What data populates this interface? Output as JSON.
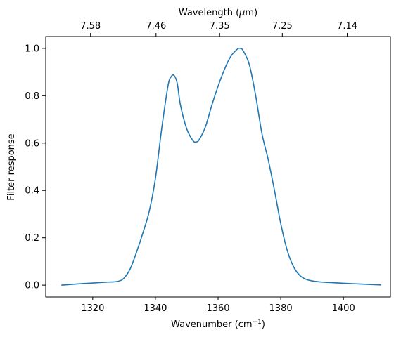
{
  "chart_data": {
    "type": "line",
    "xlabel": "Wavenumber (cm",
    "xlabel_sup": "−1",
    "xlabel_suffix": ")",
    "ylabel": "Filter response",
    "top_xlabel_prefix": "Wavelength (",
    "top_xlabel_unit": "μ",
    "top_xlabel_suffix": "m)",
    "xlim": [
      1305,
      1415
    ],
    "ylim": [
      -0.05,
      1.05
    ],
    "x_ticks": [
      1320,
      1340,
      1360,
      1380,
      1400
    ],
    "y_ticks": [
      0.0,
      0.2,
      0.4,
      0.6,
      0.8,
      1.0
    ],
    "top_ticks": [
      {
        "label": "7.58",
        "x": 1319.3
      },
      {
        "label": "7.46",
        "x": 1340.2
      },
      {
        "label": "7.35",
        "x": 1360.5
      },
      {
        "label": "7.25",
        "x": 1380.5
      },
      {
        "label": "7.14",
        "x": 1401.2
      }
    ],
    "grid": false,
    "series": [
      {
        "color": "#1f77b4",
        "x": [
          1310,
          1315,
          1320,
          1325,
          1328,
          1330,
          1332,
          1334,
          1336,
          1338,
          1340,
          1342,
          1344,
          1345,
          1346,
          1347,
          1348,
          1350,
          1352,
          1353,
          1354,
          1356,
          1358,
          1360,
          1362,
          1364,
          1366,
          1367,
          1368,
          1370,
          1372,
          1374,
          1376,
          1378,
          1380,
          1382,
          1384,
          1386,
          1388,
          1390,
          1393,
          1396,
          1400,
          1405,
          1412
        ],
        "y": [
          0.0,
          0.005,
          0.009,
          0.013,
          0.016,
          0.03,
          0.07,
          0.14,
          0.22,
          0.31,
          0.45,
          0.66,
          0.84,
          0.88,
          0.885,
          0.85,
          0.76,
          0.66,
          0.61,
          0.605,
          0.615,
          0.67,
          0.76,
          0.84,
          0.91,
          0.965,
          0.995,
          1.0,
          0.99,
          0.93,
          0.8,
          0.64,
          0.53,
          0.4,
          0.26,
          0.15,
          0.08,
          0.042,
          0.025,
          0.018,
          0.013,
          0.011,
          0.008,
          0.005,
          0.001
        ]
      }
    ]
  }
}
